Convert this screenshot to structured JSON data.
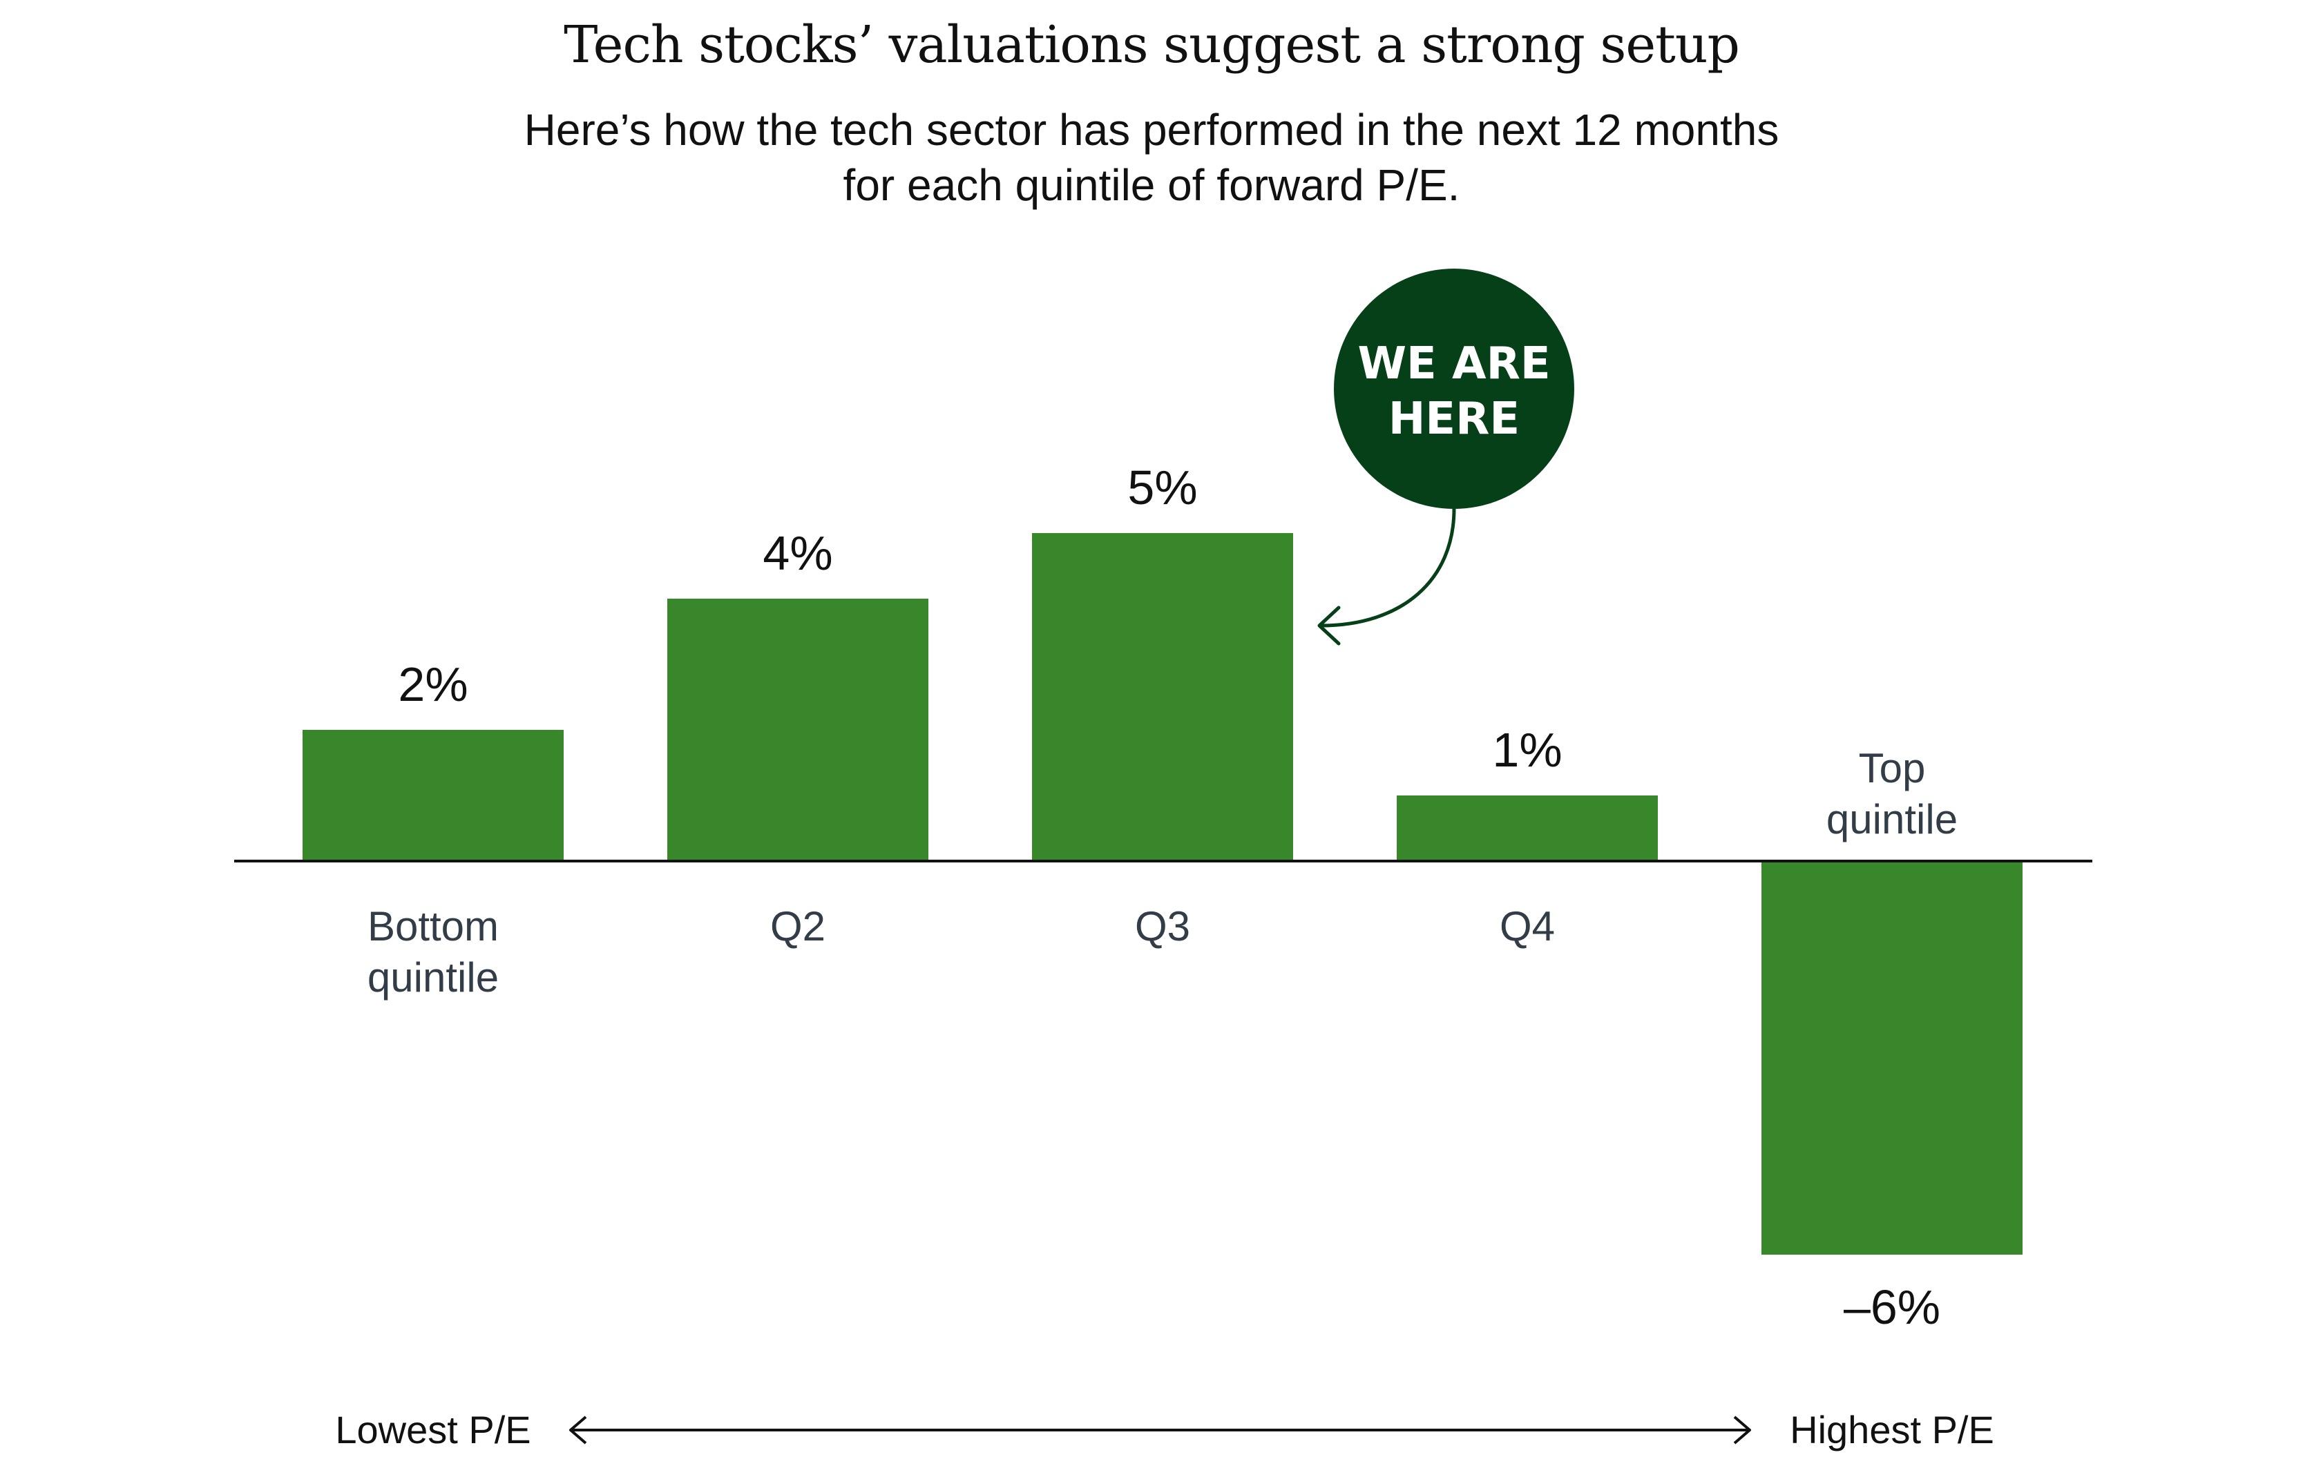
{
  "header": {
    "title": "Tech stocks’ valuations suggest a strong setup",
    "subtitle_lines": [
      "Here’s how the tech sector has performed in the next 12 months",
      "for each quintile of forward P/E."
    ]
  },
  "callout": {
    "lines": [
      "WE ARE",
      "HERE"
    ],
    "points_to": "Q3"
  },
  "scale": {
    "left_label": "Lowest P/E",
    "right_label": "Highest P/E"
  },
  "colors": {
    "bar": "#38872b",
    "callout": "#064018",
    "axis": "#111111",
    "category_text": "#333d47"
  },
  "chart_data": {
    "type": "bar",
    "title": "Tech stocks’ valuations suggest a strong setup",
    "subtitle": "Here’s how the tech sector has performed in the next 12 months for each quintile of forward P/E.",
    "xlabel": "",
    "ylabel": "",
    "categories": [
      [
        "Bottom",
        "quintile"
      ],
      [
        "Q2"
      ],
      [
        "Q3"
      ],
      [
        "Q4"
      ],
      [
        "Top",
        "quintile"
      ]
    ],
    "values": [
      2,
      4,
      5,
      1,
      -6
    ],
    "value_labels": [
      "2%",
      "4%",
      "5%",
      "1%",
      "–6%"
    ],
    "unit": "%",
    "ylim": [
      -6,
      5
    ],
    "grid": false,
    "legend": "none",
    "annotation": "WE ARE HERE (Q3)"
  }
}
